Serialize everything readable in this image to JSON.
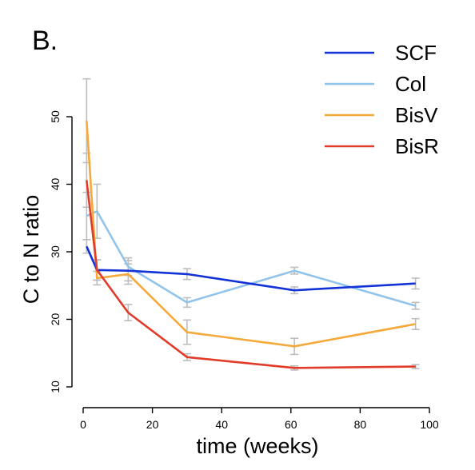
{
  "panel_label": "B.",
  "chart_data": {
    "type": "line",
    "title": "",
    "xlabel": "time (weeks)",
    "ylabel": "C to N ratio",
    "xlim": [
      0,
      100
    ],
    "ylim": [
      10,
      50
    ],
    "x_ticks": [
      0,
      20,
      40,
      60,
      80,
      100
    ],
    "y_ticks": [
      10,
      20,
      30,
      40,
      50
    ],
    "grid": false,
    "legend_position": "top-right",
    "error_bar_color": "#bdbdbd",
    "series": [
      {
        "name": "SCF",
        "color": "#1333d6",
        "x": [
          1,
          4,
          13,
          30,
          61,
          96
        ],
        "y": [
          30.8,
          27.3,
          27.2,
          26.7,
          24.3,
          25.3
        ],
        "err": [
          1.0,
          1.5,
          1.5,
          0.8,
          0.5,
          0.8
        ]
      },
      {
        "name": "Col",
        "color": "#92c4eb",
        "x": [
          1,
          4,
          13,
          30,
          61,
          96
        ],
        "y": [
          35.3,
          36.0,
          27.8,
          22.5,
          27.2,
          22.0
        ],
        "err": [
          3.5,
          4.0,
          1.3,
          0.7,
          0.5,
          0.5
        ]
      },
      {
        "name": "BisV",
        "color": "#f6a93b",
        "x": [
          1,
          4,
          13,
          30,
          61,
          96
        ],
        "y": [
          49.4,
          26.1,
          26.7,
          18.1,
          16.0,
          19.3
        ],
        "err": [
          6.2,
          1.0,
          1.5,
          1.8,
          1.2,
          0.8
        ]
      },
      {
        "name": "BisR",
        "color": "#e23b2a",
        "x": [
          1,
          4,
          13,
          30,
          61,
          96
        ],
        "y": [
          40.6,
          27.3,
          21.0,
          14.4,
          12.8,
          13.0
        ],
        "err": [
          4.0,
          1.5,
          1.2,
          0.5,
          0.3,
          0.3
        ]
      }
    ]
  }
}
